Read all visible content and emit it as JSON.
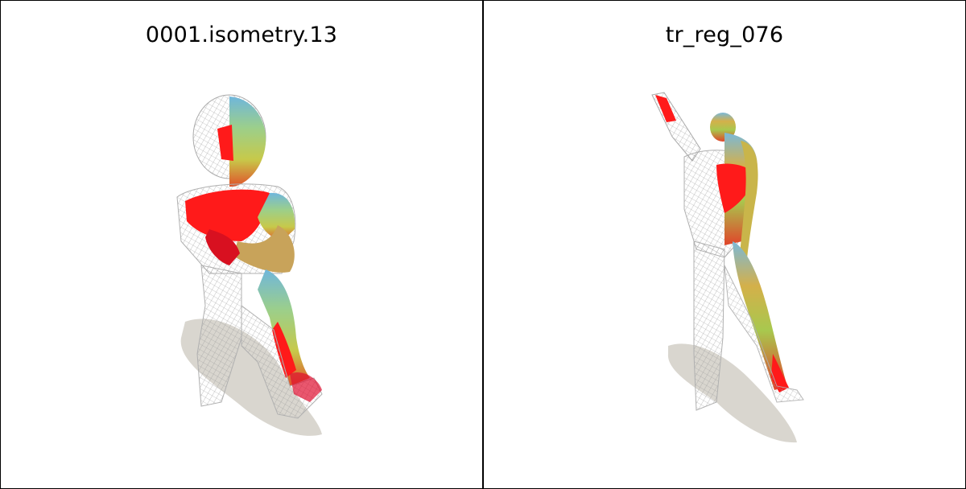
{
  "panels": [
    {
      "title": "0001.isometry.13",
      "figure": "kneeling-figure-mesh"
    },
    {
      "title": "tr_reg_076",
      "figure": "standing-figure-mesh"
    }
  ],
  "colors": {
    "wireframe": "#c8c8c8",
    "shadow": "#d9d6cf",
    "red": "#ff1a1a",
    "blue": "#6fb6dc",
    "green": "#b8d85a",
    "orange": "#e07a3a"
  }
}
